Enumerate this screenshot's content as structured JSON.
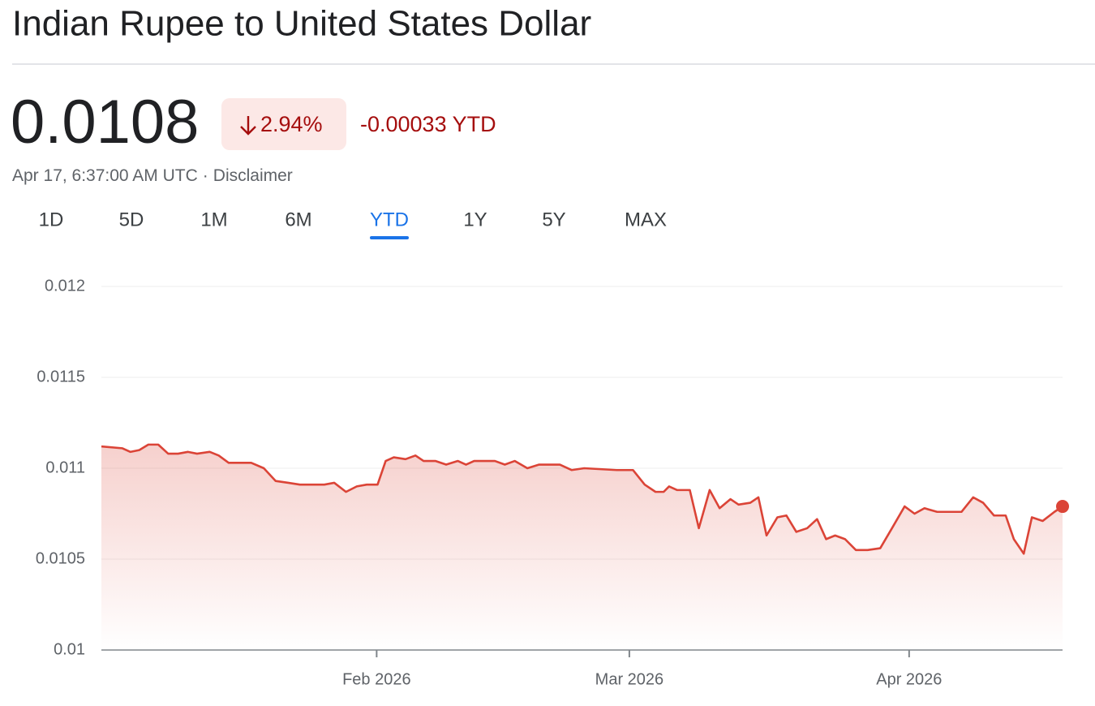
{
  "header": {
    "title": "Indian Rupee to United States Dollar"
  },
  "quote": {
    "price": "0.0108",
    "change_percent": "2.94%",
    "change": "-0.00033 YTD",
    "timestamp": "Apr 17, 6:37:00 AM UTC",
    "separator": "·",
    "disclaimer": "Disclaimer"
  },
  "tabs": {
    "items": [
      "1D",
      "5D",
      "1M",
      "6M",
      "YTD",
      "1Y",
      "5Y",
      "MAX"
    ],
    "selected": 4
  },
  "chart_data": {
    "type": "area",
    "color": "#db4437",
    "x": [
      1.5,
      3.8,
      4.7,
      5.7,
      6.7,
      7.8,
      8.9,
      10.0,
      11.1,
      12.1,
      13.5,
      14.5,
      15.6,
      18.1,
      19.5,
      20.8,
      22.2,
      23.5,
      26.2,
      27.3,
      28.6,
      29.8,
      30.9,
      32.1,
      33.0,
      33.9,
      35.2,
      36.3,
      37.2,
      38.5,
      39.7,
      41.0,
      41.9,
      42.8,
      45.1,
      46.2,
      47.3,
      48.7,
      50.0,
      52.3,
      53.6,
      55.0,
      58.6,
      60.4,
      61.7,
      62.9,
      63.8,
      64.4,
      65.3,
      66.7,
      67.7,
      68.9,
      70.0,
      71.2,
      72.1,
      73.4,
      74.3,
      75.2,
      76.4,
      77.4,
      78.5,
      79.7,
      80.8,
      81.8,
      82.8,
      83.9,
      85.1,
      86.4,
      87.8,
      89.1,
      90.5,
      91.6,
      92.7,
      94.1,
      96.8,
      98.1,
      99.2,
      100.4,
      101.7,
      102.6,
      103.7,
      104.6,
      105.8,
      107.1,
      108.0
    ],
    "values": [
      0.01112,
      0.01111,
      0.01109,
      0.0111,
      0.01113,
      0.01113,
      0.01108,
      0.01108,
      0.01109,
      0.01108,
      0.01109,
      0.01107,
      0.01103,
      0.01103,
      0.011,
      0.01093,
      0.01092,
      0.01091,
      0.01091,
      0.01092,
      0.01087,
      0.0109,
      0.01091,
      0.01091,
      0.01104,
      0.01106,
      0.01105,
      0.01107,
      0.01104,
      0.01104,
      0.01102,
      0.01104,
      0.01102,
      0.01104,
      0.01104,
      0.01102,
      0.01104,
      0.011,
      0.01102,
      0.01102,
      0.01099,
      0.011,
      0.01099,
      0.01099,
      0.01091,
      0.01087,
      0.01087,
      0.0109,
      0.01088,
      0.01088,
      0.01067,
      0.01088,
      0.01078,
      0.01083,
      0.0108,
      0.01081,
      0.01084,
      0.01063,
      0.01073,
      0.01074,
      0.01065,
      0.01067,
      0.01072,
      0.01061,
      0.01063,
      0.01061,
      0.01055,
      0.01055,
      0.01056,
      0.01067,
      0.01079,
      0.01075,
      0.01078,
      0.01076,
      0.01076,
      0.01084,
      0.01081,
      0.01074,
      0.01074,
      0.01061,
      0.01053,
      0.01073,
      0.01071,
      0.01076,
      0.01079
    ],
    "xlim": [
      1.5,
      108
    ],
    "xticks": [
      {
        "value": 32,
        "label": "Feb 2026"
      },
      {
        "value": 60,
        "label": "Mar 2026"
      },
      {
        "value": 91,
        "label": "Apr 2026"
      }
    ],
    "ylim": [
      0.01,
      0.012
    ],
    "yticks": [
      0.01,
      0.0105,
      0.011,
      0.0115,
      0.012
    ],
    "grid": true
  }
}
